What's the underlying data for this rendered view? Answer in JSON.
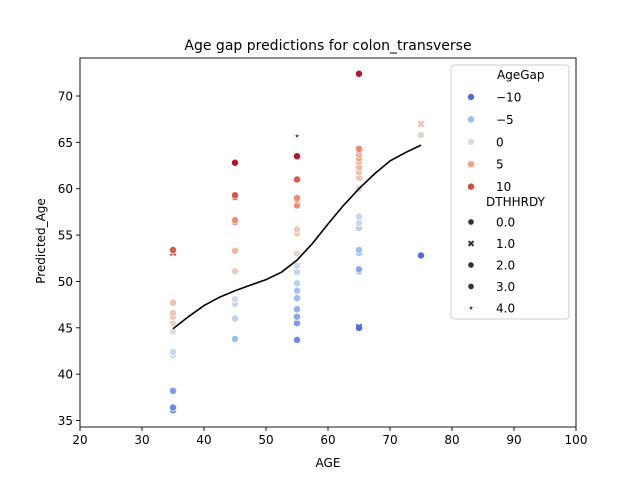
{
  "chart_data": {
    "type": "scatter",
    "title": "Age gap predictions for colon_transverse",
    "xlabel": "AGE",
    "ylabel": "Predicted_Age",
    "xlim": [
      20,
      100
    ],
    "ylim": [
      34.3,
      74.1
    ],
    "xticks": [
      "20",
      "30",
      "40",
      "50",
      "60",
      "70",
      "80",
      "90",
      "100"
    ],
    "yticks": [
      "35",
      "40",
      "45",
      "50",
      "55",
      "60",
      "65",
      "70"
    ],
    "grid": false,
    "legend": {
      "placement": "top-right",
      "hue_title": "AgeGap",
      "hue_entries": [
        {
          "label": "−10",
          "color": "#4f6fd8"
        },
        {
          "label": "−5",
          "color": "#9bbcf9"
        },
        {
          "label": "0",
          "color": "#dcdcdc"
        },
        {
          "label": "5",
          "color": "#f3a483"
        },
        {
          "label": "10",
          "color": "#d24d40"
        }
      ],
      "style_title": "DTHHRDY",
      "style_entries": [
        {
          "label": "0.0",
          "marker": "circle"
        },
        {
          "label": "1.0",
          "marker": "x"
        },
        {
          "label": "2.0",
          "marker": "circle"
        },
        {
          "label": "3.0",
          "marker": "circle"
        },
        {
          "label": "4.0",
          "marker": "star"
        }
      ]
    },
    "points": [
      {
        "x": 35,
        "y": 36.1,
        "color": "#6a8ce6",
        "marker": "circle"
      },
      {
        "x": 35,
        "y": 36.4,
        "color": "#6a8ce6",
        "marker": "circle"
      },
      {
        "x": 35,
        "y": 38.2,
        "color": "#7a9cee",
        "marker": "circle"
      },
      {
        "x": 35,
        "y": 42.1,
        "color": "#c5d5f2",
        "marker": "circle"
      },
      {
        "x": 35,
        "y": 42.4,
        "color": "#c5d5f2",
        "marker": "circle"
      },
      {
        "x": 35,
        "y": 44.6,
        "color": "#dcdcdc",
        "marker": "circle"
      },
      {
        "x": 35,
        "y": 45.5,
        "color": "#e6d5cc",
        "marker": "circle"
      },
      {
        "x": 35,
        "y": 46.2,
        "color": "#ecc8b4",
        "marker": "circle"
      },
      {
        "x": 35,
        "y": 46.6,
        "color": "#ecc8b4",
        "marker": "circle"
      },
      {
        "x": 35,
        "y": 47.7,
        "color": "#f0bfa5",
        "marker": "circle"
      },
      {
        "x": 35,
        "y": 53.1,
        "color": "#d24d40",
        "marker": "x"
      },
      {
        "x": 35,
        "y": 53.4,
        "color": "#d65a47",
        "marker": "circle"
      },
      {
        "x": 45,
        "y": 43.8,
        "color": "#9bbcf9",
        "marker": "circle"
      },
      {
        "x": 45,
        "y": 46.0,
        "color": "#b8cef5",
        "marker": "circle"
      },
      {
        "x": 45,
        "y": 47.6,
        "color": "#c5d5f2",
        "marker": "circle"
      },
      {
        "x": 45,
        "y": 48.1,
        "color": "#cfdaf0",
        "marker": "circle"
      },
      {
        "x": 45,
        "y": 51.1,
        "color": "#ecc8b4",
        "marker": "circle"
      },
      {
        "x": 45,
        "y": 53.3,
        "color": "#f0b898",
        "marker": "circle"
      },
      {
        "x": 45,
        "y": 56.4,
        "color": "#ee8a6c",
        "marker": "circle"
      },
      {
        "x": 45,
        "y": 56.6,
        "color": "#ee8a6c",
        "marker": "circle"
      },
      {
        "x": 45,
        "y": 59.1,
        "color": "#d65a47",
        "marker": "circle"
      },
      {
        "x": 45,
        "y": 59.3,
        "color": "#d65a47",
        "marker": "circle"
      },
      {
        "x": 45,
        "y": 62.8,
        "color": "#b5142a",
        "marker": "circle"
      },
      {
        "x": 55,
        "y": 43.7,
        "color": "#6a8ce6",
        "marker": "circle"
      },
      {
        "x": 55,
        "y": 45.5,
        "color": "#7a9cee",
        "marker": "circle"
      },
      {
        "x": 55,
        "y": 46.2,
        "color": "#86a6f1",
        "marker": "circle"
      },
      {
        "x": 55,
        "y": 47.0,
        "color": "#8fb0f4",
        "marker": "circle"
      },
      {
        "x": 55,
        "y": 48.2,
        "color": "#9bbcf9",
        "marker": "circle"
      },
      {
        "x": 55,
        "y": 49.0,
        "color": "#a7c2f7",
        "marker": "circle"
      },
      {
        "x": 55,
        "y": 49.8,
        "color": "#b8cef5",
        "marker": "circle"
      },
      {
        "x": 55,
        "y": 51.0,
        "color": "#c5d5f2",
        "marker": "circle"
      },
      {
        "x": 55,
        "y": 51.7,
        "color": "#cfdaf0",
        "marker": "circle"
      },
      {
        "x": 55,
        "y": 53.0,
        "color": "#e6d5cc",
        "marker": "circle"
      },
      {
        "x": 55,
        "y": 55.2,
        "color": "#ecc8b4",
        "marker": "circle"
      },
      {
        "x": 55,
        "y": 55.6,
        "color": "#ecc8b4",
        "marker": "circle"
      },
      {
        "x": 55,
        "y": 58.2,
        "color": "#ee8a6c",
        "marker": "circle"
      },
      {
        "x": 55,
        "y": 58.8,
        "color": "#ee8a6c",
        "marker": "circle"
      },
      {
        "x": 55,
        "y": 59.0,
        "color": "#ee8a6c",
        "marker": "circle"
      },
      {
        "x": 55,
        "y": 61.0,
        "color": "#d65a47",
        "marker": "circle"
      },
      {
        "x": 55,
        "y": 63.5,
        "color": "#b5142a",
        "marker": "circle"
      },
      {
        "x": 55,
        "y": 65.7,
        "color": "#b5142a",
        "marker": "star"
      },
      {
        "x": 65,
        "y": 45.0,
        "color": "#4f6fd8",
        "marker": "circle"
      },
      {
        "x": 65,
        "y": 45.1,
        "color": "#4f6fd8",
        "marker": "x"
      },
      {
        "x": 65,
        "y": 51.1,
        "color": "#86a6f1",
        "marker": "circle"
      },
      {
        "x": 65,
        "y": 51.3,
        "color": "#86a6f1",
        "marker": "circle"
      },
      {
        "x": 65,
        "y": 53.1,
        "color": "#9bbcf9",
        "marker": "circle"
      },
      {
        "x": 65,
        "y": 53.4,
        "color": "#9bbcf9",
        "marker": "circle"
      },
      {
        "x": 65,
        "y": 55.8,
        "color": "#b8cef5",
        "marker": "circle"
      },
      {
        "x": 65,
        "y": 56.3,
        "color": "#c5d5f2",
        "marker": "circle"
      },
      {
        "x": 65,
        "y": 57.0,
        "color": "#c5d5f2",
        "marker": "circle"
      },
      {
        "x": 65,
        "y": 60.0,
        "color": "#e6d5cc",
        "marker": "circle"
      },
      {
        "x": 65,
        "y": 61.2,
        "color": "#ecc8b4",
        "marker": "circle"
      },
      {
        "x": 65,
        "y": 61.8,
        "color": "#f0bfa5",
        "marker": "circle"
      },
      {
        "x": 65,
        "y": 62.3,
        "color": "#f0b898",
        "marker": "circle"
      },
      {
        "x": 65,
        "y": 62.9,
        "color": "#f0b898",
        "marker": "circle"
      },
      {
        "x": 65,
        "y": 63.3,
        "color": "#f3a483",
        "marker": "circle"
      },
      {
        "x": 65,
        "y": 63.7,
        "color": "#f3a483",
        "marker": "circle"
      },
      {
        "x": 65,
        "y": 64.1,
        "color": "#ee8a6c",
        "marker": "circle"
      },
      {
        "x": 65,
        "y": 64.3,
        "color": "#ee8a6c",
        "marker": "circle"
      },
      {
        "x": 65,
        "y": 72.4,
        "color": "#b5142a",
        "marker": "circle"
      },
      {
        "x": 75,
        "y": 52.8,
        "color": "#4f6fd8",
        "marker": "circle"
      },
      {
        "x": 75,
        "y": 65.8,
        "color": "#e6d5cc",
        "marker": "circle"
      },
      {
        "x": 75,
        "y": 67.0,
        "color": "#f0bfa5",
        "marker": "x"
      }
    ],
    "trend_line": {
      "color": "#000000",
      "x": [
        35,
        37.5,
        40,
        42.5,
        45,
        47.5,
        50,
        52.5,
        55,
        57.5,
        60,
        62.5,
        65,
        67.5,
        70,
        72.5,
        75
      ],
      "y": [
        44.9,
        46.2,
        47.4,
        48.3,
        49.0,
        49.6,
        50.2,
        51.0,
        52.3,
        54.1,
        56.2,
        58.2,
        60.0,
        61.6,
        63.0,
        63.9,
        64.7
      ]
    }
  }
}
